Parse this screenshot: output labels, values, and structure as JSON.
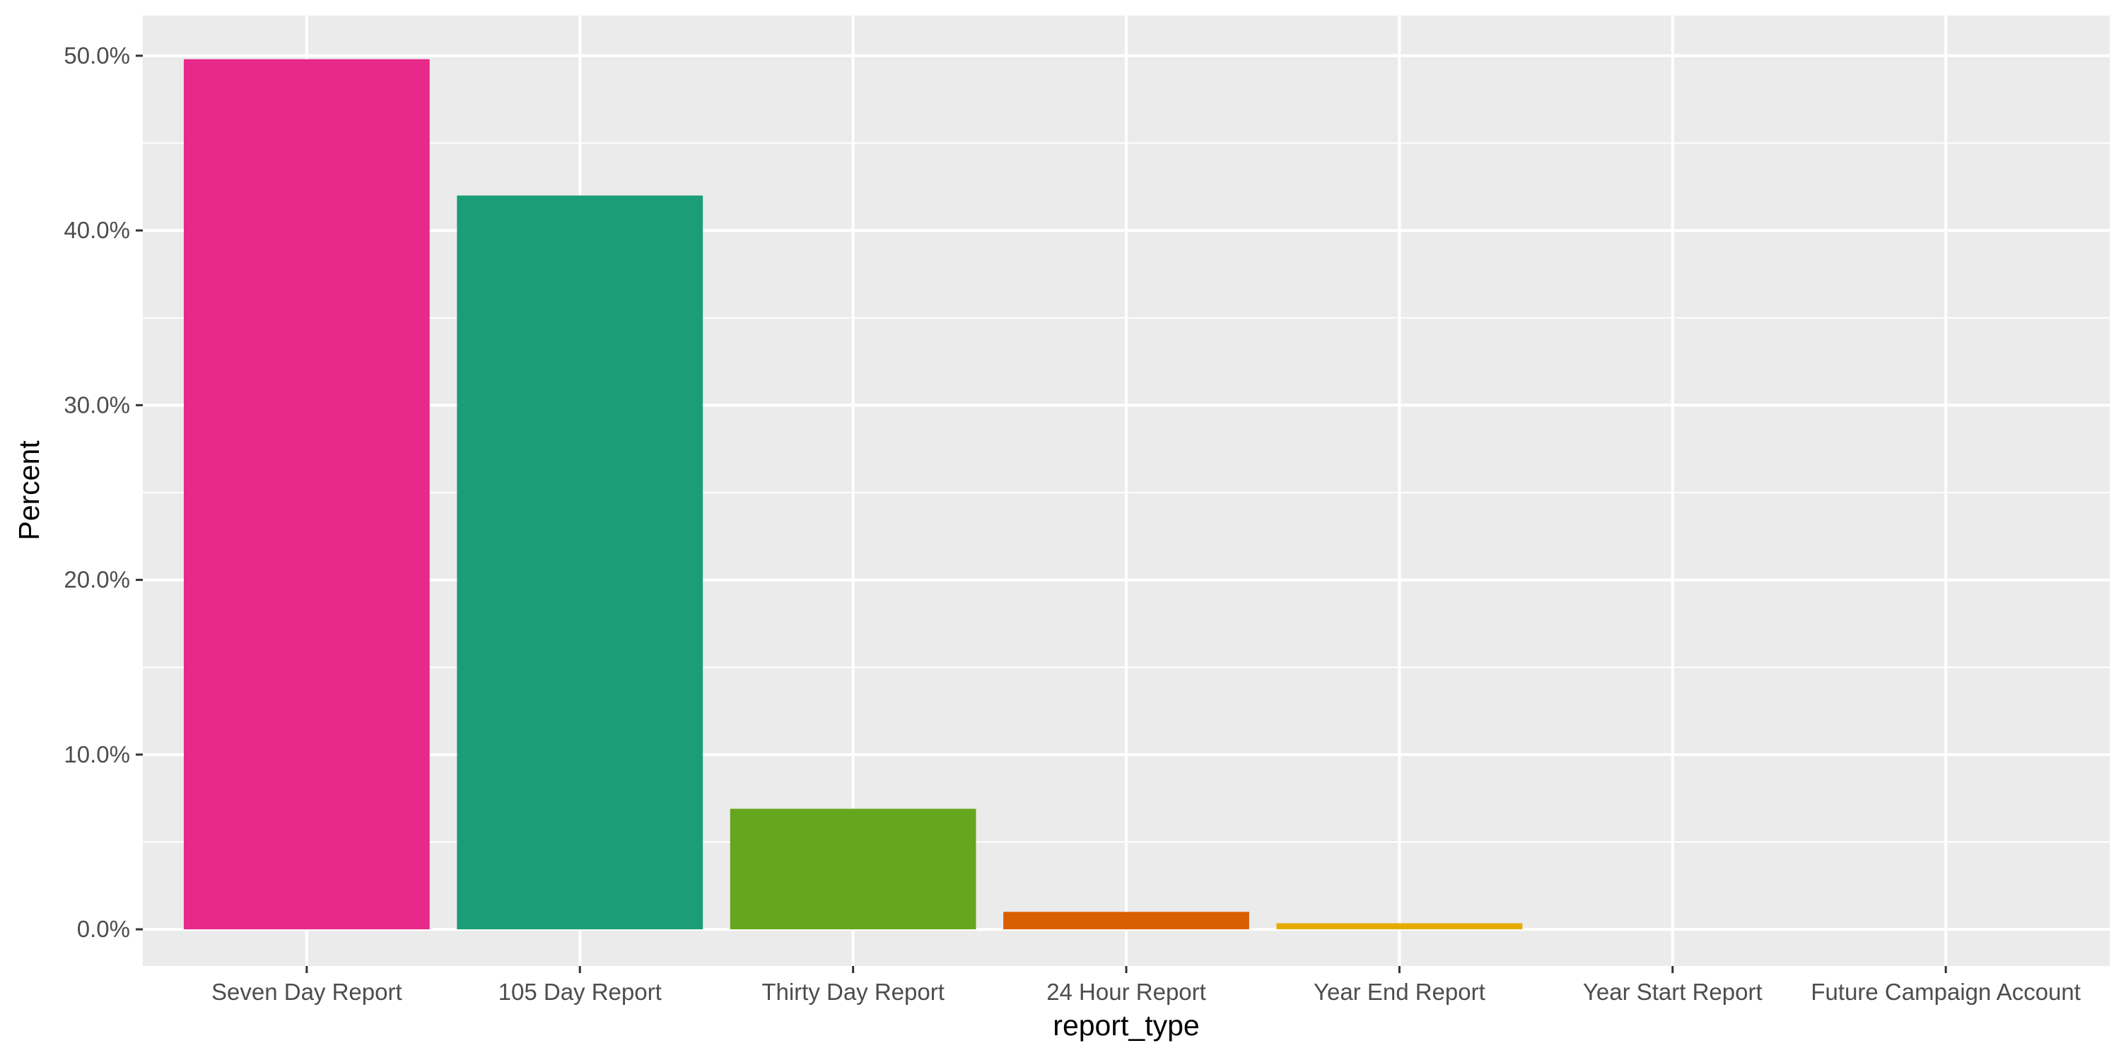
{
  "chart_data": {
    "type": "bar",
    "title": "",
    "xlabel": "report_type",
    "ylabel": "Percent",
    "categories": [
      "Seven Day Report",
      "105 Day Report",
      "Thirty Day Report",
      "24 Hour Report",
      "Year End Report",
      "Year Start Report",
      "Future Campaign Account"
    ],
    "values": [
      49.8,
      42.0,
      6.9,
      1.0,
      0.35,
      0.0,
      0.0
    ],
    "colors": [
      "#E7298A",
      "#1B9E77",
      "#66A61E",
      "#D95F02",
      "#E6AB02",
      "#A6761D",
      "#666666"
    ],
    "ylim": [
      -2.1,
      52.3
    ],
    "yticks": [
      0,
      10,
      20,
      30,
      40,
      50
    ],
    "ytick_labels": [
      "0.0%",
      "10.0%",
      "20.0%",
      "30.0%",
      "40.0%",
      "50.0%"
    ],
    "grid": true,
    "legend": "none",
    "panel_background": "#EBEBEB",
    "grid_color": "#FFFFFF"
  }
}
